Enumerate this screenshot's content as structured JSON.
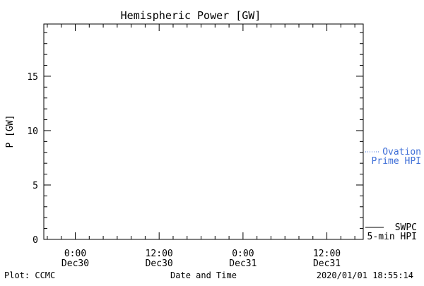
{
  "chart_data": {
    "type": "line",
    "title": "Hemispheric Power [GW]",
    "ylabel": "P [GW]",
    "xlabel": "Date and Time",
    "ylim": [
      0,
      19.8
    ],
    "yticks": [
      0,
      5,
      10,
      15
    ],
    "xlim": [
      -4.5,
      41.2
    ],
    "x_ticks": [
      {
        "x": 0,
        "time": "0:00",
        "date": "Dec30"
      },
      {
        "x": 12,
        "time": "12:00",
        "date": "Dec30"
      },
      {
        "x": 24,
        "time": "0:00",
        "date": "Dec31"
      },
      {
        "x": 36,
        "time": "12:00",
        "date": "Dec31"
      }
    ],
    "x_ticks_note": "x values are hours from 2019-12-30 0:00 (offset encoding)",
    "x_tick_labels": [
      {
        "x": 0,
        "time": "0:00",
        "date": "Dec30"
      },
      {
        "x": 12,
        "time": "12:00",
        "date": "Dec30"
      },
      {
        "x": 24,
        "time": "0:00",
        "date": "Dec31"
      },
      {
        "x": 36,
        "time": "12:00",
        "date": "Dec31"
      }
    ],
    "series": [
      {
        "name": "SWPC 5-min HPI",
        "color": "#000000",
        "style": "solid-step",
        "x": [],
        "y": []
      },
      {
        "name": "Ovation Prime HPI",
        "color": "#3f6fd8",
        "style": "dotted",
        "x": [],
        "y": []
      }
    ],
    "grid": false,
    "legend_placement": "right"
  },
  "footer": {
    "left": "Plot: CCMC",
    "center": "Date and Time",
    "right": "2020/01/01 18:55:14"
  },
  "legend": {
    "ovation_line1": "Ovation",
    "ovation_line2": "Prime HPI",
    "swpc_line1": "SWPC",
    "swpc_line2": "5-min HPI"
  }
}
